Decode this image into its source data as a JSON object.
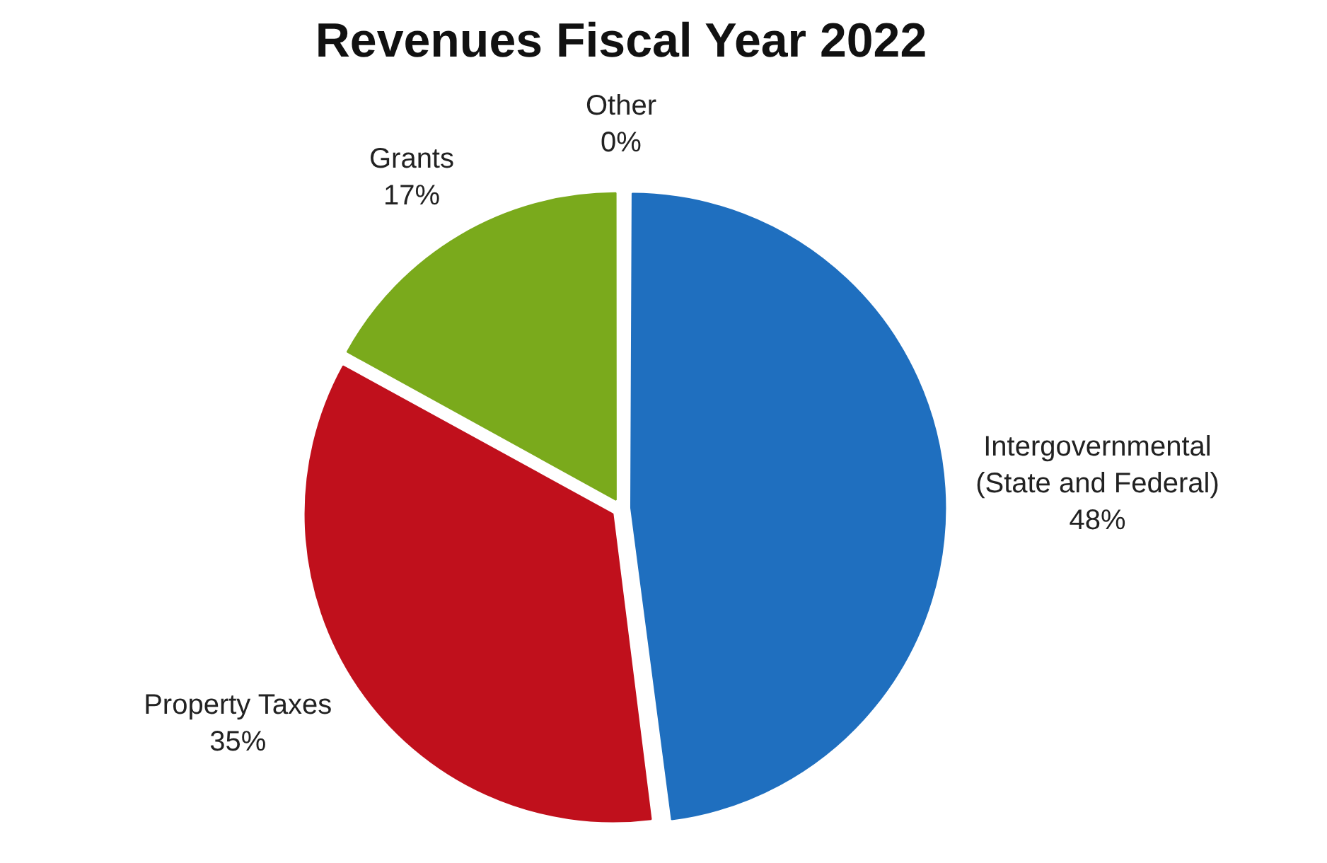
{
  "chart_data": {
    "type": "pie",
    "title": "Revenues Fiscal Year 2022",
    "categories": [
      "Intergovernmental (State and Federal)",
      "Property Taxes",
      "Grants",
      "Other"
    ],
    "values": [
      48,
      35,
      17,
      0
    ],
    "value_labels": [
      "48%",
      "35%",
      "17%",
      "0%"
    ],
    "colors": [
      "#1f6fbf",
      "#c0101c",
      "#7aaa1c",
      "#a05070"
    ],
    "legend": false
  }
}
